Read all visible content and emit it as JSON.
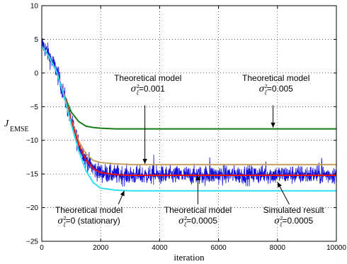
{
  "chart_data": {
    "type": "line",
    "title": "",
    "xlabel": "iteration",
    "ylabel": "J",
    "ylabel_sub": "EMSE",
    "xlim": [
      0,
      10000
    ],
    "ylim": [
      -25,
      10
    ],
    "xticks": [
      0,
      2000,
      4000,
      6000,
      8000,
      10000
    ],
    "xtick_labels": [
      "0",
      "2000",
      "4000",
      "6000",
      "8000",
      "10000"
    ],
    "yticks": [
      -25,
      -20,
      -15,
      -10,
      -5,
      0,
      5,
      10
    ],
    "ytick_labels": [
      "−25",
      "−20",
      "−15",
      "−10",
      "−5",
      "0",
      "5",
      "10"
    ],
    "grid": true,
    "series": [
      {
        "color": "#1010d8",
        "noisy": true,
        "x": [
          0,
          250,
          500,
          750,
          1000,
          1250,
          1500,
          1750,
          2000,
          2500,
          3000,
          4000,
          5000,
          6000,
          7000,
          8000,
          9000,
          10000
        ],
        "y": [
          4.5,
          2.6,
          0.4,
          -3.2,
          -7.2,
          -10.6,
          -12.9,
          -14.2,
          -14.8,
          -15.1,
          -15.2,
          -15.2,
          -15.2,
          -15.1,
          -15.1,
          -15.1,
          -15.1,
          -15.1
        ]
      },
      {
        "color": "#1a7a1a",
        "x": [
          0,
          250,
          500,
          750,
          1000,
          1250,
          1500,
          1750,
          2000,
          2500,
          3000,
          4000,
          6000,
          8000,
          10000
        ],
        "y": [
          4.0,
          2.4,
          0.2,
          -3.2,
          -5.8,
          -7.2,
          -7.9,
          -8.1,
          -8.2,
          -8.3,
          -8.3,
          -8.3,
          -8.3,
          -8.3,
          -8.3
        ]
      },
      {
        "color": "#c8a060",
        "x": [
          0,
          250,
          500,
          750,
          1000,
          1250,
          1500,
          1750,
          2000,
          2500,
          3000,
          4000,
          6000,
          8000,
          10000
        ],
        "y": [
          4.0,
          2.4,
          0.2,
          -3.0,
          -6.9,
          -10.1,
          -12.0,
          -13.0,
          -13.3,
          -13.5,
          -13.6,
          -13.6,
          -13.6,
          -13.6,
          -13.6
        ]
      },
      {
        "color": "#e81010",
        "x": [
          0,
          250,
          500,
          750,
          1000,
          1250,
          1500,
          1750,
          2000,
          2500,
          3000,
          4000,
          6000,
          8000,
          10000
        ],
        "y": [
          4.0,
          2.4,
          0.2,
          -3.1,
          -7.1,
          -10.6,
          -12.9,
          -14.2,
          -14.8,
          -15.1,
          -15.2,
          -15.2,
          -15.2,
          -15.2,
          -15.2
        ]
      },
      {
        "color": "#30e0f0",
        "x": [
          0,
          250,
          500,
          750,
          1000,
          1250,
          1500,
          1750,
          2000,
          2500,
          3000,
          4000,
          6000,
          8000,
          10000
        ],
        "y": [
          4.0,
          2.4,
          0.2,
          -3.3,
          -7.6,
          -11.5,
          -14.5,
          -16.3,
          -17.1,
          -17.4,
          -17.5,
          -17.5,
          -17.5,
          -17.5,
          -17.5
        ]
      }
    ],
    "annotations": [
      {
        "line1": "Theoretical model",
        "line2": "=0.001",
        "tx": 3600,
        "ty": -1.2,
        "ax": 3500,
        "ay": -4.8,
        "axEnd": 3500,
        "ayEnd": -13.5
      },
      {
        "line1": "Theoretical model",
        "line2": "=0.005",
        "tx": 7950,
        "ty": -1.2,
        "ax": 7850,
        "ay": -4.8,
        "axEnd": 7850,
        "ayEnd": -8.1
      },
      {
        "line1": "Theoretical model",
        "line2": "=0 (stationary)",
        "tx": 1600,
        "ty": -20.8,
        "ax": 2600,
        "ay": -19.5,
        "axEnd": 2800,
        "ayEnd": -17.5
      },
      {
        "line1": "Theoretical model",
        "line2": "=0.0005",
        "tx": 5300,
        "ty": -20.8,
        "ax": 5300,
        "ay": -19.5,
        "axEnd": 5300,
        "ayEnd": -15.2
      },
      {
        "line1": "Simulated result",
        "line2": "=0.0005",
        "tx": 8550,
        "ty": -20.8,
        "ax": 8400,
        "ay": -19.5,
        "axEnd": 8000,
        "ayEnd": -16.2
      }
    ]
  }
}
